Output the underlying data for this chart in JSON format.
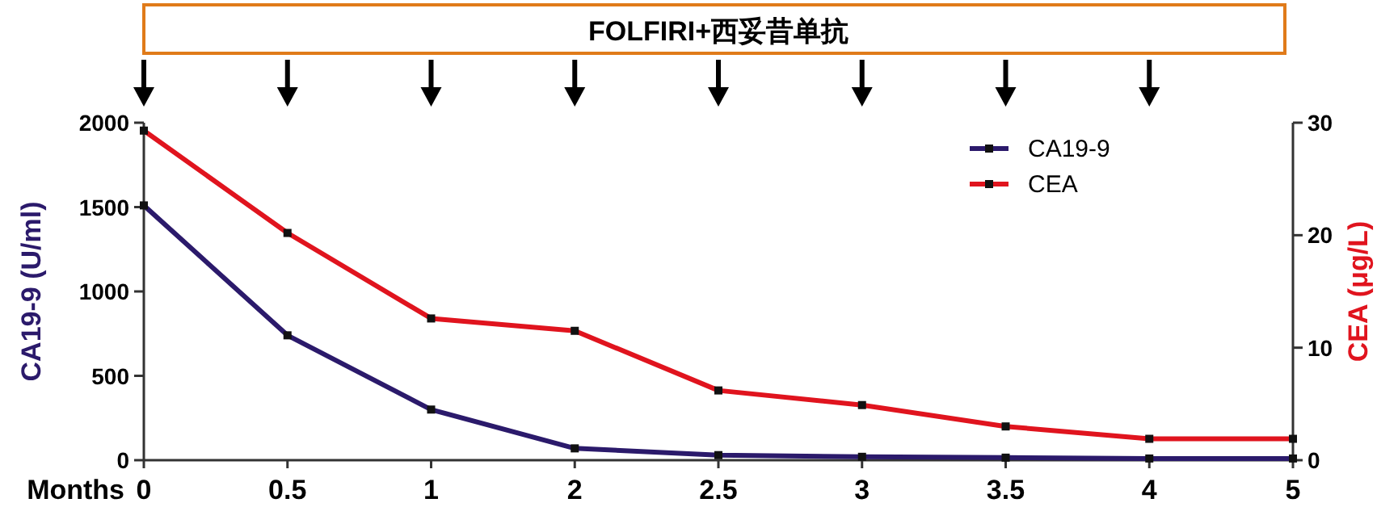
{
  "chart_data": {
    "type": "line",
    "title": "FOLFIRI+西妥昔单抗",
    "xlabel": "Months",
    "ylabel": "CA19-9 (U/ml)",
    "y2label": "CEA (μg/L)",
    "categories": [
      "0",
      "0.5",
      "1",
      "2",
      "2.5",
      "3",
      "3.5",
      "4",
      "5"
    ],
    "series": [
      {
        "name": "CA19-9",
        "color": "#2b1a6b",
        "values": [
          1510,
          740,
          300,
          70,
          30,
          20,
          15,
          10,
          10
        ]
      },
      {
        "name": "CEA",
        "color": "#e0141e",
        "axis": "y2",
        "values": [
          29.3,
          20.2,
          12.6,
          11.5,
          6.2,
          4.9,
          3.0,
          1.9,
          1.9
        ]
      }
    ],
    "ylim": [
      0,
      2000
    ],
    "yticks": [
      0,
      500,
      1000,
      1500,
      2000
    ],
    "y2lim": [
      0,
      30
    ],
    "y2ticks": [
      0,
      10,
      20,
      30
    ],
    "legend": "top right",
    "marker": "square",
    "line_style": "solid"
  }
}
